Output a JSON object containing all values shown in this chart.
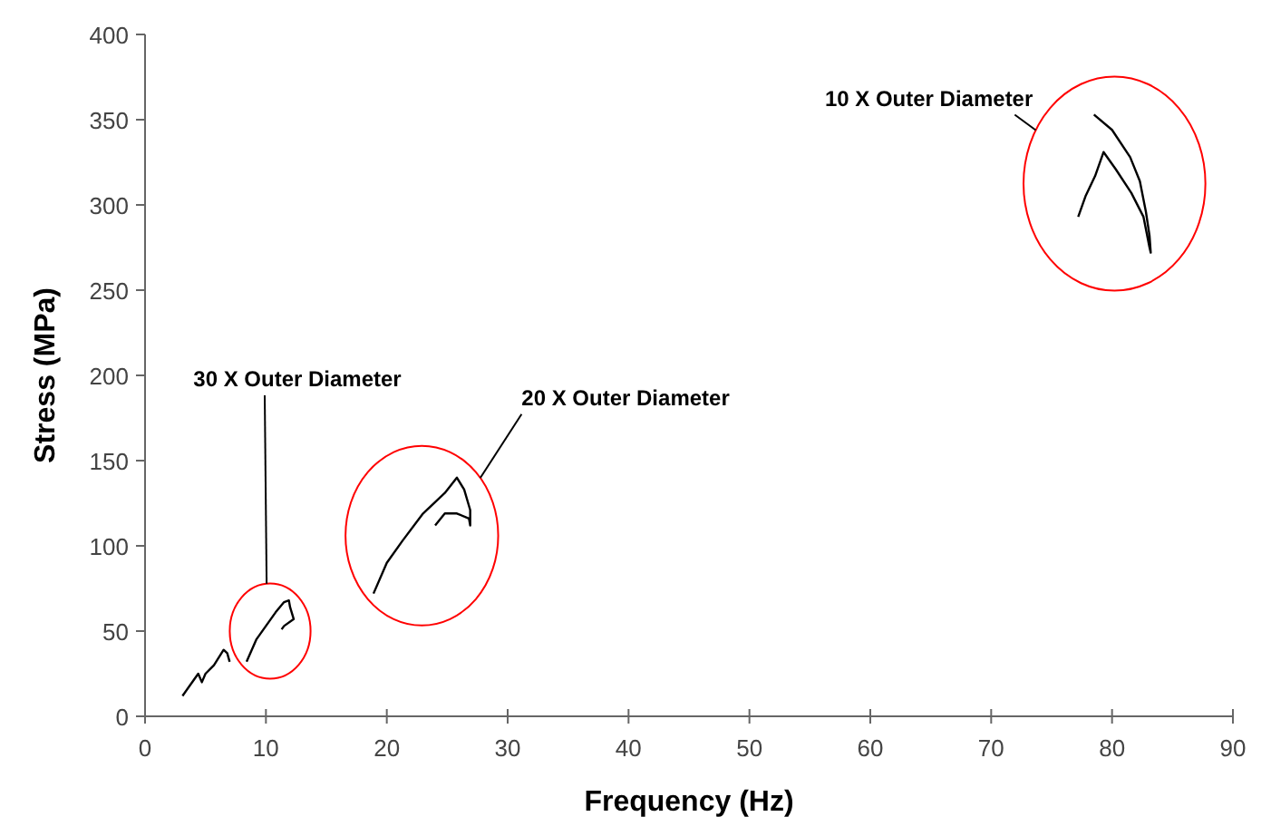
{
  "chart_data": {
    "type": "line",
    "xlabel": "Frequency (Hz)",
    "ylabel": "Stress (MPa)",
    "xlim": [
      0,
      90
    ],
    "xticks": [
      0,
      10,
      20,
      30,
      40,
      50,
      60,
      70,
      80,
      90
    ],
    "ylim": [
      0,
      400
    ],
    "yticks": [
      0,
      50,
      100,
      150,
      200,
      250,
      300,
      350,
      400
    ],
    "grid": false,
    "marker": "none",
    "line_style": "solid",
    "series": [
      {
        "color": "#000000",
        "x": [
          3.1,
          4,
          4.4,
          4.7,
          5,
          5.7,
          6.5,
          6.8,
          7
        ],
        "values": [
          12,
          21,
          25,
          20,
          25,
          30,
          39,
          37,
          32
        ]
      },
      {
        "color": "#000000",
        "x": [
          8.4,
          9.2,
          10,
          10.8,
          11.5,
          11.9,
          12,
          12.3,
          11.5,
          11.3
        ],
        "values": [
          32,
          45,
          53,
          61,
          67,
          68,
          64,
          57,
          53,
          51
        ]
      },
      {
        "color": "#000000",
        "x": [
          18.9,
          20,
          21.3,
          23,
          24.8,
          25.8,
          26.4,
          26.9,
          26.9,
          26.8,
          25.8,
          24.8,
          24
        ],
        "values": [
          72,
          90,
          103,
          119,
          131,
          140,
          133,
          121,
          112,
          116,
          119,
          119,
          112
        ]
      },
      {
        "color": "#000000",
        "x": [
          77.2,
          77.8,
          78.6,
          79.3,
          80.3,
          81.6,
          82.6,
          83.1,
          83.2,
          83.1,
          82.8,
          82.3,
          81.5,
          80,
          78.5
        ],
        "values": [
          293,
          305,
          317,
          331,
          321,
          307,
          293,
          275,
          272,
          282,
          296,
          314,
          328,
          344,
          353
        ]
      }
    ],
    "annotations": [
      "30 X Outer Diameter",
      "20 X Outer Diameter",
      "10 X Outer Diameter"
    ]
  }
}
